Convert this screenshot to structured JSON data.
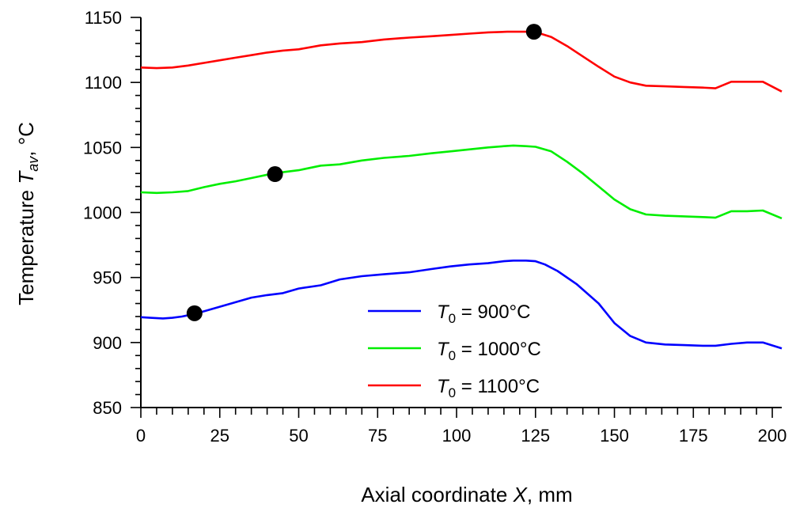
{
  "chart_data": {
    "type": "line",
    "xlabel": {
      "pre": "Axial coordinate ",
      "var": "X",
      "post": ", mm"
    },
    "ylabel": {
      "pre": "Temperature ",
      "var": "T",
      "sub": "av",
      "post": ",  °C"
    },
    "xlim": [
      0,
      203
    ],
    "ylim": [
      850,
      1150
    ],
    "x_ticks": [
      0,
      25,
      50,
      75,
      100,
      125,
      150,
      175,
      200
    ],
    "y_ticks": [
      850,
      900,
      950,
      1000,
      1050,
      1100,
      1150
    ],
    "x_minor_step": 5,
    "y_minor_step": 10,
    "legend_position": "bottom-center",
    "series": [
      {
        "name": "T0 = 900°C",
        "label": {
          "var": "T",
          "sub": "0",
          "text": " = 900°C"
        },
        "color": "#0000ff",
        "x": [
          0,
          3,
          7,
          10,
          13,
          17,
          20,
          25,
          30,
          35,
          40,
          45,
          50,
          57,
          63,
          70,
          77,
          85,
          92,
          98,
          104,
          110,
          115,
          118,
          122,
          125,
          128,
          132,
          138,
          145,
          150,
          155,
          160,
          166,
          172,
          178,
          182,
          187,
          192,
          197,
          203
        ],
        "y": [
          919.5,
          919,
          918.5,
          919,
          920,
          922,
          924,
          927.5,
          931,
          934.5,
          936.5,
          938,
          941.5,
          944,
          948.5,
          951,
          952.5,
          954,
          956.5,
          958.5,
          960,
          961,
          962.5,
          963,
          963,
          962.5,
          960,
          955,
          945,
          930,
          915,
          905,
          900,
          898.5,
          898,
          897.5,
          897.5,
          899,
          900,
          900,
          895.5
        ]
      },
      {
        "name": "T0 = 1000°C",
        "label": {
          "var": "T",
          "sub": "0",
          "text": " = 1000°C"
        },
        "color": "#00ee00",
        "x": [
          0,
          5,
          10,
          15,
          20,
          25,
          30,
          35,
          40,
          45,
          50,
          57,
          63,
          70,
          77,
          85,
          92,
          98,
          104,
          110,
          115,
          118,
          122,
          125,
          130,
          135,
          140,
          145,
          150,
          155,
          160,
          166,
          172,
          178,
          182,
          187,
          192,
          197,
          203
        ],
        "y": [
          1015.5,
          1015,
          1015.5,
          1016.5,
          1019.5,
          1022,
          1024,
          1026.5,
          1029,
          1031,
          1032.5,
          1036,
          1037,
          1040,
          1042,
          1043.5,
          1045.5,
          1047,
          1048.5,
          1050,
          1051,
          1051.5,
          1051,
          1050.5,
          1047,
          1039,
          1030,
          1020,
          1010,
          1002.5,
          998.5,
          997.5,
          997,
          996.5,
          996,
          1001,
          1001,
          1001.5,
          995.5
        ]
      },
      {
        "name": "T0 = 1100°C",
        "label": {
          "var": "T",
          "sub": "0",
          "text": " = 1100°C"
        },
        "color": "#ff0000",
        "x": [
          0,
          5,
          10,
          15,
          20,
          25,
          30,
          35,
          40,
          45,
          50,
          57,
          63,
          70,
          77,
          85,
          92,
          98,
          104,
          110,
          116,
          121,
          124,
          126,
          130,
          135,
          140,
          145,
          150,
          155,
          160,
          166,
          172,
          178,
          182,
          187,
          192,
          197,
          203
        ],
        "y": [
          1111.5,
          1111,
          1111.5,
          1113,
          1115,
          1117,
          1119,
          1121,
          1123,
          1124.5,
          1125.5,
          1128.5,
          1130,
          1131,
          1133,
          1134.5,
          1135.5,
          1136.5,
          1137.5,
          1138.5,
          1139,
          1139,
          1139,
          1138,
          1135,
          1128,
          1120,
          1112,
          1104.5,
          1100,
          1097.5,
          1097,
          1096.5,
          1096,
          1095.5,
          1100.5,
          1100.5,
          1100.5,
          1093
        ]
      }
    ],
    "markers": [
      {
        "series": "T0 = 900°C",
        "x": 17,
        "y": 922.5,
        "color": "#000000"
      },
      {
        "series": "T0 = 1000°C",
        "x": 42.5,
        "y": 1029.5,
        "color": "#000000"
      },
      {
        "series": "T0 = 1100°C",
        "x": 124.5,
        "y": 1139,
        "color": "#000000"
      }
    ]
  }
}
